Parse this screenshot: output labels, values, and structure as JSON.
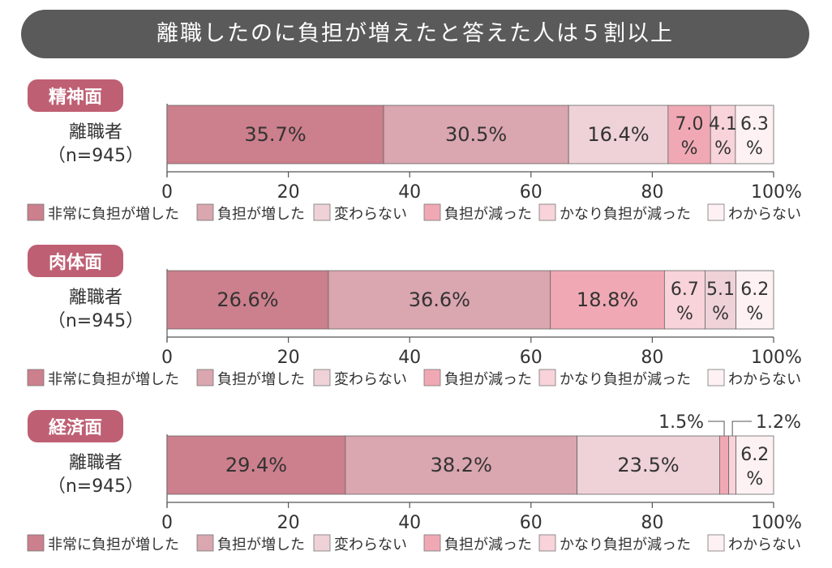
{
  "title": "離職したのに負担が増えたと答えた人は５割以上",
  "colors": {
    "banner_bg": "#5a5a5a",
    "section_label_bg": "#bf5f73",
    "series": [
      "#cc7f8c",
      "#daa6b0",
      "#eed2d7",
      "#f0a9b4",
      "#f8d3da",
      "#fdf1f3"
    ]
  },
  "chart_data": [
    {
      "type": "bar",
      "orientation": "horizontal-stacked",
      "section_label": "精神面",
      "categories": [
        "離職者",
        "（n=945）"
      ],
      "x_ticks": [
        "0",
        "20",
        "40",
        "60",
        "80",
        "100%"
      ],
      "xlim": [
        0,
        100
      ],
      "series": [
        {
          "name": "非常に負担が増した",
          "value": 35.7,
          "label": "35.7%"
        },
        {
          "name": "負担が増した",
          "value": 30.5,
          "label": "30.5%"
        },
        {
          "name": "変わらない",
          "value": 16.4,
          "label": "16.4%"
        },
        {
          "name": "負担が減った",
          "value": 7.0,
          "label": "7.0%"
        },
        {
          "name": "かなり負担が減った",
          "value": 4.1,
          "label": "4.1%"
        },
        {
          "name": "わからない",
          "value": 6.3,
          "label": "6.3%"
        }
      ]
    },
    {
      "type": "bar",
      "orientation": "horizontal-stacked",
      "section_label": "肉体面",
      "categories": [
        "離職者",
        "（n=945）"
      ],
      "x_ticks": [
        "0",
        "20",
        "40",
        "60",
        "80",
        "100%"
      ],
      "xlim": [
        0,
        100
      ],
      "series": [
        {
          "name": "非常に負担が増した",
          "value": 26.6,
          "label": "26.6%"
        },
        {
          "name": "負担が増した",
          "value": 36.6,
          "label": "36.6%"
        },
        {
          "name": "負担が減った",
          "value": 18.8,
          "label": "18.8%"
        },
        {
          "name": "かなり負担が減った",
          "value": 6.7,
          "label": "6.7%"
        },
        {
          "name": "変わらない",
          "value": 5.1,
          "label": "5.1%"
        },
        {
          "name": "わからない",
          "value": 6.2,
          "label": "6.2%"
        }
      ]
    },
    {
      "type": "bar",
      "orientation": "horizontal-stacked",
      "section_label": "経済面",
      "categories": [
        "離職者",
        "（n=945）"
      ],
      "x_ticks": [
        "0",
        "20",
        "40",
        "60",
        "80",
        "100%"
      ],
      "xlim": [
        0,
        100
      ],
      "series": [
        {
          "name": "非常に負担が増した",
          "value": 29.4,
          "label": "29.4%"
        },
        {
          "name": "負担が増した",
          "value": 38.2,
          "label": "38.2%"
        },
        {
          "name": "変わらない",
          "value": 23.5,
          "label": "23.5%"
        },
        {
          "name": "負担が減った",
          "value": 1.5,
          "label": "1.5%"
        },
        {
          "name": "かなり負担が減った",
          "value": 1.2,
          "label": "1.2%"
        },
        {
          "name": "わからない",
          "value": 6.2,
          "label": "6.2%"
        }
      ]
    }
  ],
  "legend": [
    {
      "name": "非常に負担が増した",
      "color": "#cc7f8c"
    },
    {
      "name": "負担が増した",
      "color": "#daa6b0"
    },
    {
      "name": "変わらない",
      "color": "#eed2d7"
    },
    {
      "name": "負担が減った",
      "color": "#f0a9b4"
    },
    {
      "name": "かなり負担が減った",
      "color": "#f8d3da"
    },
    {
      "name": "わからない",
      "color": "#fdf1f3"
    }
  ]
}
